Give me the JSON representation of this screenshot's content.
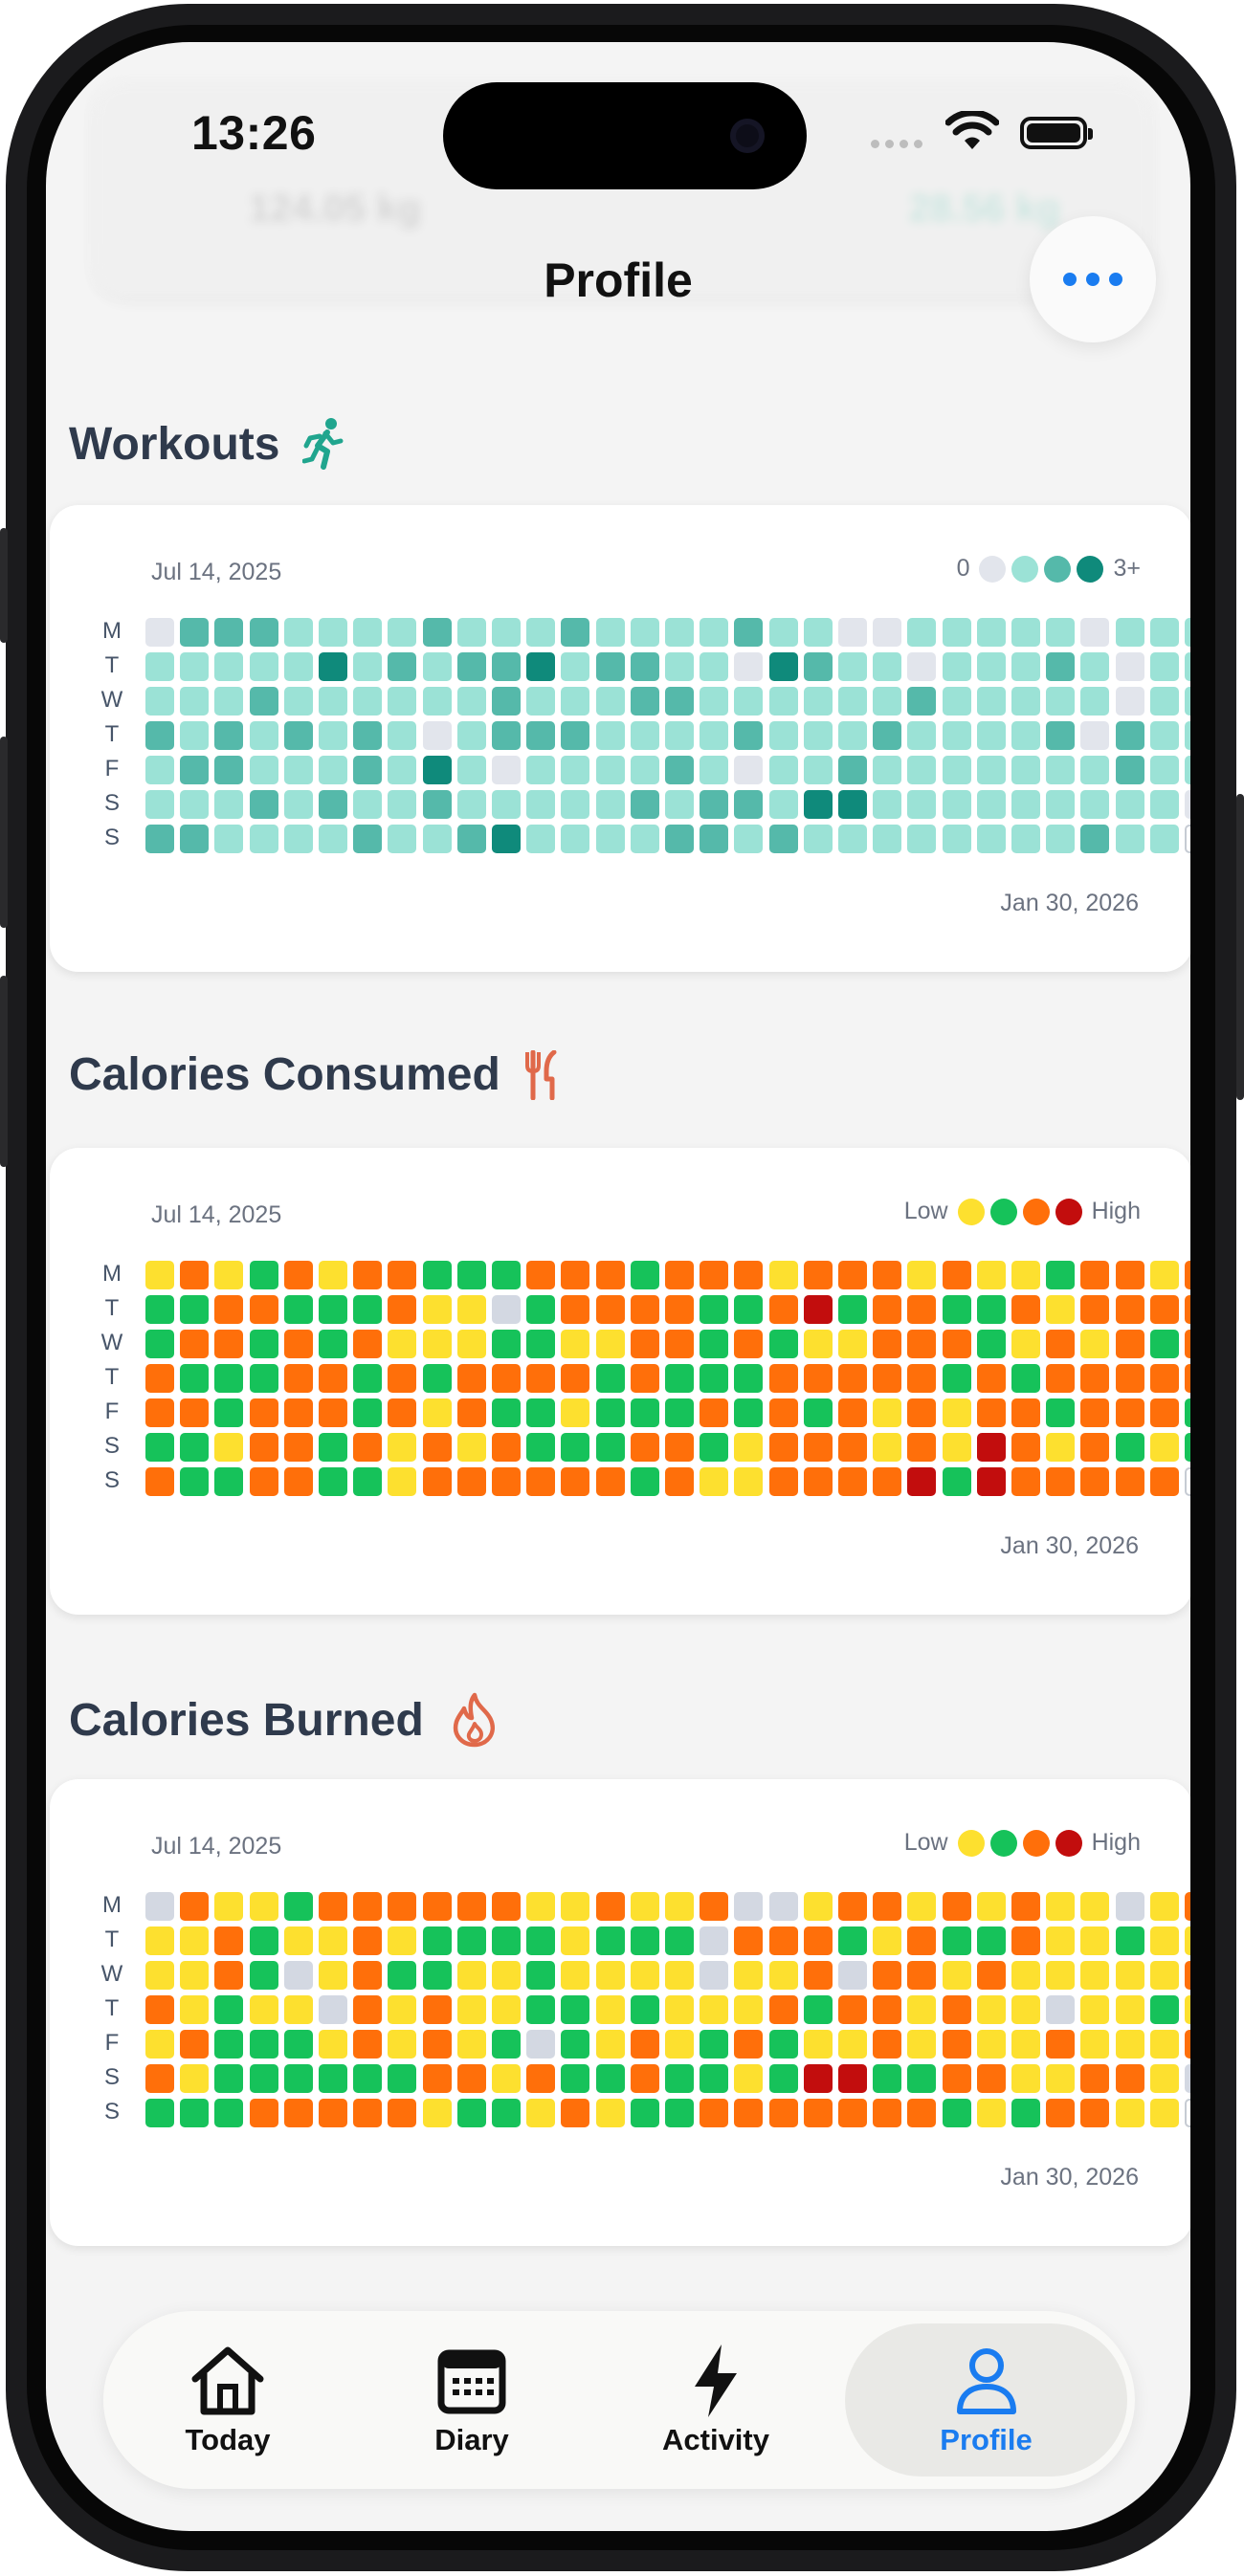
{
  "status": {
    "time": "13:26"
  },
  "header": {
    "title": "Profile"
  },
  "ghost": {
    "weight1": "124.05 kg",
    "weight3": "28.56 kg"
  },
  "sections": [
    {
      "title": "Workouts",
      "icon": "running-icon",
      "start_date": "Jul 14, 2025",
      "end_date": "Jan 30, 2026",
      "legend": {
        "low": "0",
        "high": "3+",
        "colors": [
          "#e2e5ec",
          "#9be2d6",
          "#55b9aa",
          "#0f8a7b"
        ]
      },
      "palette": [
        "#e2e5ec",
        "#9be2d6",
        "#55b9aa",
        "#0f8a7b"
      ],
      "rows": [
        "0222111121112111121100111110111",
        "1111131212231221103211011121011",
        "1112111111211122111111211111011",
        "2121212101222111121112111120211",
        "1221112131011112101121111111211",
        "1112121121111121221331111111110",
        "2211112112311112212111111112118"
      ]
    },
    {
      "title": "Calories Consumed",
      "icon": "fork-knife-icon",
      "start_date": "Jul 14, 2025",
      "end_date": "Jan 30, 2026",
      "legend": {
        "low": "Low",
        "high": "High",
        "colors": [
          "#fde02f",
          "#16c25a",
          "#ff6f0a",
          "#c20d0d"
        ]
      },
      "palette": [
        "#d3d8e2",
        "#fde02f",
        "#16c25a",
        "#ff6f0a",
        "#c20d0d"
      ],
      "rows": [
        "1312313322233323331333131123313",
        "2233222311023333223423322313333",
        "2332323111221133232113332131323",
        "3222332323333232223333323233333",
        "3323332313221222323231313323332",
        "2213323131322233213331314313212",
        "3223322133333323113333424333338"
      ]
    },
    {
      "title": "Calories Burned",
      "icon": "flame-icon",
      "start_date": "Jul 14, 2025",
      "end_date": "Jan 30, 2026",
      "legend": {
        "low": "Low",
        "high": "High",
        "colors": [
          "#fde02f",
          "#16c25a",
          "#ff6f0a",
          "#c20d0d"
        ]
      },
      "palette": [
        "#d3d8e2",
        "#fde02f",
        "#16c25a",
        "#ff6f0a",
        "#c20d0d"
      ],
      "rows": [
        "0311233333311311300133131311013",
        "1132113122221222033321322311211",
        "1132013221121111011303313111113",
        "3121103131122121113233131101121",
        "1322213131202131232113131131113",
        "3122222233132232212442233113310",
        "2223333312213122333333321233118"
      ]
    }
  ],
  "day_labels": [
    "M",
    "T",
    "W",
    "T",
    "F",
    "S",
    "S"
  ],
  "tabs": [
    {
      "label": "Today",
      "icon": "home-icon"
    },
    {
      "label": "Diary",
      "icon": "calendar-icon"
    },
    {
      "label": "Activity",
      "icon": "bolt-icon"
    },
    {
      "label": "Profile",
      "icon": "person-icon",
      "active": true
    }
  ],
  "colors": {
    "accent": "#1a7cf0",
    "title": "#2f3a4c"
  }
}
